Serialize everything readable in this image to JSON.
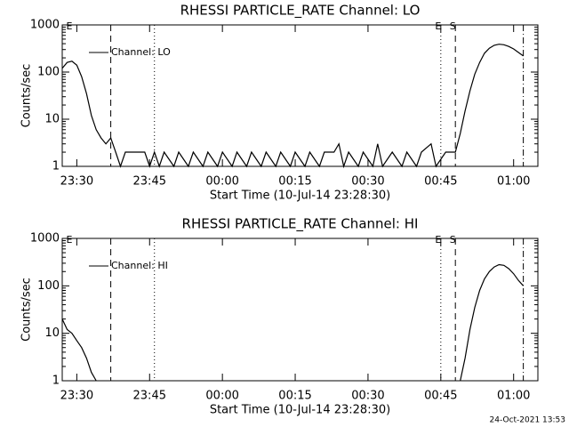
{
  "chart_data": [
    {
      "type": "line",
      "title": "RHESSI PARTICLE_RATE Channel: LO",
      "xlabel": "Start Time (10-Jul-14 23:28:30)",
      "ylabel": "Counts/sec",
      "log_y": true,
      "ylim": [
        1,
        1000
      ],
      "yticks": [
        1,
        10,
        100,
        1000
      ],
      "xlim": [
        "23:27",
        "01:05"
      ],
      "xticks": [
        "23:30",
        "23:45",
        "00:00",
        "00:15",
        "00:30",
        "00:45",
        "01:00"
      ],
      "legend": "top-left",
      "vlines": [
        {
          "x": "23:37",
          "style": "dashed"
        },
        {
          "x": "23:46",
          "style": "dotted"
        },
        {
          "x": "00:45",
          "style": "dotted"
        },
        {
          "x": "00:48",
          "style": "dashed"
        },
        {
          "x": "01:02",
          "style": "dashdot"
        }
      ],
      "flags": [
        {
          "x": "23:29",
          "label": "E"
        },
        {
          "x": "00:45",
          "label": "E"
        },
        {
          "x": "00:48",
          "label": "S"
        }
      ],
      "x": [
        "23:27",
        "23:28",
        "23:29",
        "23:30",
        "23:31",
        "23:32",
        "23:33",
        "23:34",
        "23:35",
        "23:36",
        "23:37",
        "23:38",
        "23:39",
        "23:40",
        "23:42",
        "23:44",
        "23:45",
        "23:46",
        "23:47",
        "23:48",
        "23:50",
        "23:51",
        "23:53",
        "23:54",
        "23:56",
        "23:57",
        "23:59",
        "00:00",
        "00:02",
        "00:03",
        "00:05",
        "00:06",
        "00:08",
        "00:09",
        "00:11",
        "00:12",
        "00:14",
        "00:15",
        "00:17",
        "00:18",
        "00:20",
        "00:21",
        "00:23",
        "00:24",
        "00:25",
        "00:26",
        "00:28",
        "00:29",
        "00:31",
        "00:32",
        "00:33",
        "00:35",
        "00:37",
        "00:38",
        "00:40",
        "00:41",
        "00:43",
        "00:44",
        "00:46",
        "00:48",
        "00:49",
        "00:50",
        "00:51",
        "00:52",
        "00:53",
        "00:54",
        "00:55",
        "00:56",
        "00:57",
        "00:58",
        "00:59",
        "01:00",
        "01:01",
        "01:02"
      ],
      "series": [
        {
          "name": "Channel: LO",
          "color": "#000000",
          "values": [
            120,
            160,
            170,
            140,
            80,
            35,
            12,
            6,
            4,
            3,
            4,
            2,
            1,
            2,
            2,
            2,
            1,
            2,
            1,
            2,
            1,
            2,
            1,
            2,
            1,
            2,
            1,
            2,
            1,
            2,
            1,
            2,
            1,
            2,
            1,
            2,
            1,
            2,
            1,
            2,
            1,
            2,
            2,
            3,
            1,
            2,
            1,
            2,
            1,
            3,
            1,
            2,
            1,
            2,
            1,
            2,
            3,
            1,
            2,
            2,
            5,
            15,
            40,
            90,
            160,
            250,
            320,
            370,
            390,
            380,
            350,
            310,
            260,
            220
          ]
        }
      ]
    },
    {
      "type": "line",
      "title": "RHESSI PARTICLE_RATE Channel: HI",
      "xlabel": "Start Time (10-Jul-14 23:28:30)",
      "ylabel": "Counts/sec",
      "log_y": true,
      "ylim": [
        1,
        1000
      ],
      "yticks": [
        1,
        10,
        100,
        1000
      ],
      "xlim": [
        "23:27",
        "01:05"
      ],
      "xticks": [
        "23:30",
        "23:45",
        "00:00",
        "00:15",
        "00:30",
        "00:45",
        "01:00"
      ],
      "legend": "top-left",
      "vlines": [
        {
          "x": "23:37",
          "style": "dashed"
        },
        {
          "x": "23:46",
          "style": "dotted"
        },
        {
          "x": "00:45",
          "style": "dotted"
        },
        {
          "x": "00:48",
          "style": "dashed"
        },
        {
          "x": "01:02",
          "style": "dashdot"
        }
      ],
      "flags": [
        {
          "x": "23:29",
          "label": "E"
        },
        {
          "x": "00:45",
          "label": "E"
        },
        {
          "x": "00:48",
          "label": "S"
        }
      ],
      "x": [
        "23:27",
        "23:28",
        "23:29",
        "23:30",
        "23:31",
        "23:32",
        "23:33",
        "23:34",
        "00:00",
        "00:49",
        "00:50",
        "00:51",
        "00:52",
        "00:53",
        "00:54",
        "00:55",
        "00:56",
        "00:57",
        "00:58",
        "00:59",
        "01:00",
        "01:01",
        "01:02"
      ],
      "series": [
        {
          "name": "Channel: HI",
          "color": "#000000",
          "values": [
            20,
            12,
            10,
            7,
            5,
            3,
            1.5,
            1,
            null,
            1,
            3,
            12,
            35,
            80,
            140,
            200,
            250,
            280,
            270,
            230,
            180,
            130,
            100
          ]
        }
      ]
    }
  ],
  "footer": "24-Oct-2021 13:53"
}
